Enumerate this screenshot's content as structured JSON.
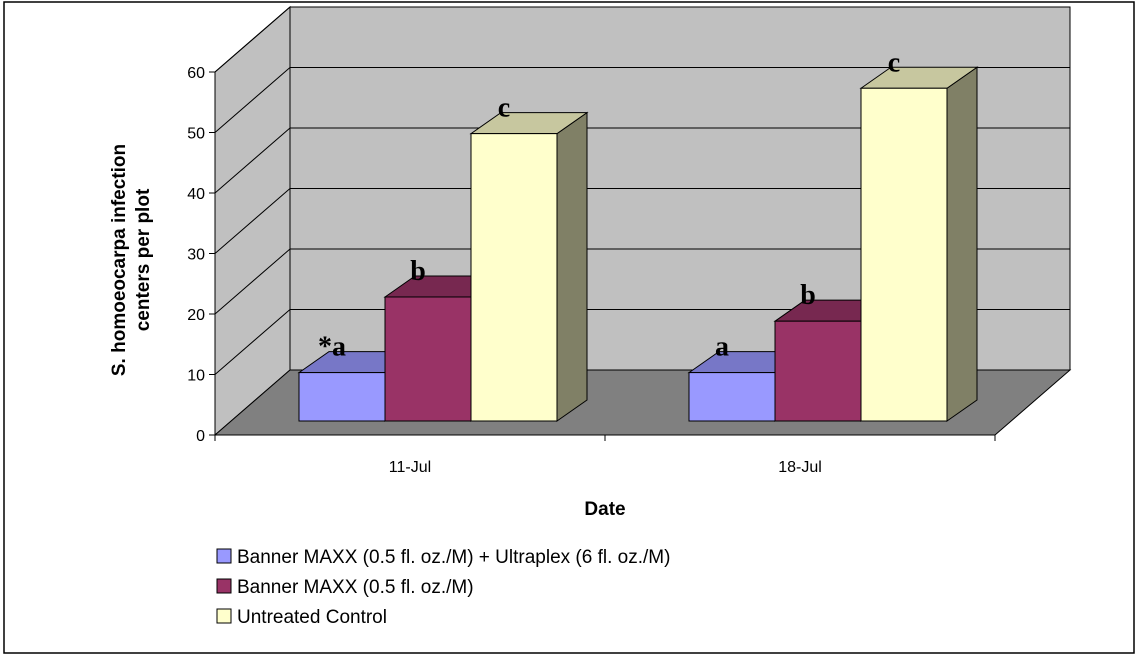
{
  "chart_data": {
    "type": "bar",
    "categories": [
      "11-Jul",
      "18-Jul"
    ],
    "series": [
      {
        "name": "Banner MAXX (0.5 fl. oz./M) + Ultraplex (6 fl. oz./M)",
        "values": [
          8,
          8
        ],
        "labels": [
          "*a",
          "a"
        ],
        "color": "#9999ff"
      },
      {
        "name": "Banner MAXX (0.5 fl. oz./M)",
        "values": [
          20.5,
          16.5
        ],
        "labels": [
          "b",
          "b"
        ],
        "color": "#993366"
      },
      {
        "name": "Untreated Control",
        "values": [
          47.5,
          55
        ],
        "labels": [
          "c",
          "c"
        ],
        "color": "#ffffcc"
      }
    ],
    "xlabel": "Date",
    "ylabel": "S. homoeocarpa infection centers per plot",
    "ylabel_lines": [
      "S. homoeocarpa infection",
      "centers per plot"
    ],
    "ylim": [
      0,
      60
    ],
    "yticks": [
      0,
      10,
      20,
      30,
      40,
      50,
      60
    ],
    "grid": true,
    "legend_position": "bottom-left",
    "wall_color": "#c0c0c0",
    "floor_color": "#808080"
  }
}
